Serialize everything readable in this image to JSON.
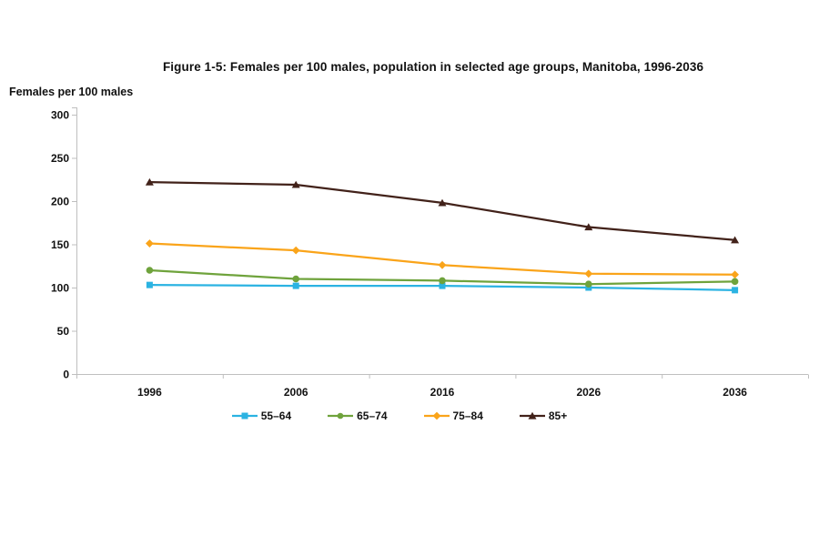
{
  "chart_data": {
    "type": "line",
    "title": "Figure 1-5: Females per 100 males, population in selected age groups, Manitoba, 1996-2036",
    "ylabel": "Females per 100 males",
    "xlabel": "",
    "categories": [
      "1996",
      "2006",
      "2016",
      "2026",
      "2036"
    ],
    "series": [
      {
        "name": "55–64",
        "marker": "square",
        "color": "#2BB3E2",
        "values": [
          103,
          102,
          102,
          100,
          97
        ]
      },
      {
        "name": "65–74",
        "marker": "circle",
        "color": "#6FA33C",
        "values": [
          120,
          110,
          108,
          104,
          107
        ]
      },
      {
        "name": "75–84",
        "marker": "diamond",
        "color": "#FAA41A",
        "values": [
          151,
          143,
          126,
          116,
          115
        ]
      },
      {
        "name": "85+",
        "marker": "triangle",
        "color": "#42221A",
        "values": [
          222,
          219,
          198,
          170,
          155
        ]
      }
    ],
    "ylim": [
      0,
      300
    ],
    "y_step": 50,
    "grid": false,
    "legend_position": "bottom",
    "axis_color": "#BFBFBF",
    "text_color": "#111111"
  }
}
